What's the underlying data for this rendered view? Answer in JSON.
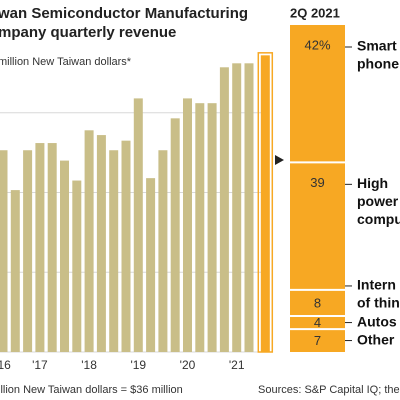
{
  "chart_data": [
    {
      "type": "bar",
      "title": [
        "wan Semiconductor Manufacturing",
        "mpany quarterly revenue"
      ],
      "y_label": "million New Taiwan dollars*",
      "categories": [
        "'16",
        null,
        null,
        "'17",
        null,
        null,
        null,
        "'18",
        null,
        null,
        null,
        "'19",
        null,
        null,
        null,
        "'20",
        null,
        null,
        null,
        "'21",
        null,
        null
      ],
      "values": [
        253000,
        203000,
        253000,
        262000,
        262000,
        240000,
        215000,
        278000,
        272000,
        253000,
        265000,
        318000,
        218000,
        253000,
        293000,
        318000,
        312000,
        312000,
        357000,
        362000,
        362000,
        372000
      ],
      "color": "#c9be88",
      "highlight_color": "#f7a823",
      "ylim": [
        0,
        400000
      ],
      "yticks": [
        0,
        100000,
        200000,
        300000
      ],
      "grid": true,
      "footnote": "illion New Taiwan dollars = $36 million",
      "source": "Sources: S&P Capital IQ; the co"
    },
    {
      "type": "stacked_bar",
      "title": "2Q 2021",
      "labels": [
        [
          "Smart",
          "phone"
        ],
        [
          "High",
          "power",
          "compu"
        ],
        [
          "Intern",
          "of thin"
        ],
        [
          "Autos"
        ],
        [
          "Other"
        ]
      ],
      "values": [
        42,
        39,
        8,
        4,
        7
      ],
      "value_labels": [
        "42%",
        "39",
        "8",
        "4",
        "7"
      ],
      "color": "#f7a823",
      "ylim": [
        0,
        100
      ]
    }
  ]
}
